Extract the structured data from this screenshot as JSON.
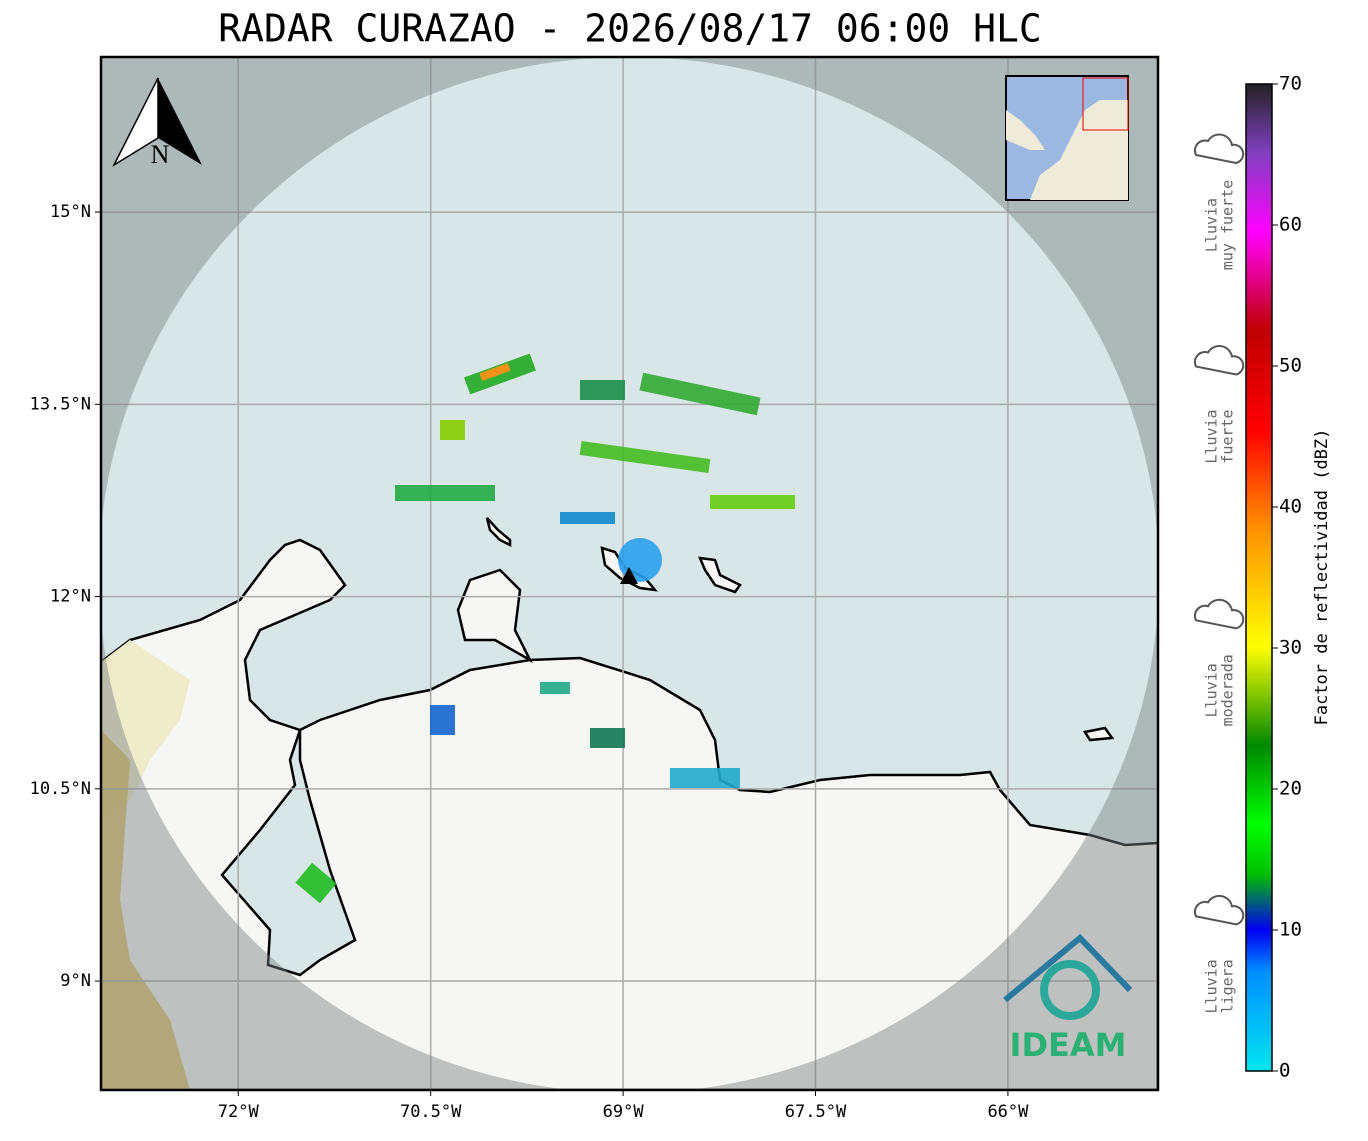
{
  "map": {
    "title": "RADAR CURAZAO - 2026/08/17 06:00 HLC",
    "lon_range": [
      -73.07,
      -64.83
    ],
    "lat_range": [
      8.15,
      16.21
    ],
    "lon_ticks": [
      {
        "value": -72,
        "label": "72°W"
      },
      {
        "value": -70.5,
        "label": "70.5°W"
      },
      {
        "value": -69,
        "label": "69°W"
      },
      {
        "value": -67.5,
        "label": "67.5°W"
      },
      {
        "value": -66,
        "label": "66°W"
      }
    ],
    "lat_ticks": [
      {
        "value": 15,
        "label": "15°N"
      },
      {
        "value": 13.5,
        "label": "13.5°N"
      },
      {
        "value": 12,
        "label": "12°N"
      },
      {
        "value": 10.5,
        "label": "10.5°N"
      },
      {
        "value": 9,
        "label": "9°N"
      }
    ],
    "north_label": "N",
    "logo": "IDEAM",
    "colorbar": {
      "label": "Factor de reflectividad (dBZ)",
      "range": [
        0,
        70
      ],
      "ticks": [
        0,
        10,
        20,
        30,
        40,
        50,
        60,
        70
      ]
    },
    "rain_levels": [
      {
        "lines": [
          "Lluvia",
          "muy fuerte"
        ],
        "dbz": 60
      },
      {
        "lines": [
          "Lluvia",
          "fuerte"
        ],
        "dbz": 45
      },
      {
        "lines": [
          "Lluvia",
          "moderada"
        ],
        "dbz": 27
      },
      {
        "lines": [
          "Lluvia",
          "ligera"
        ],
        "dbz": 6
      }
    ]
  }
}
